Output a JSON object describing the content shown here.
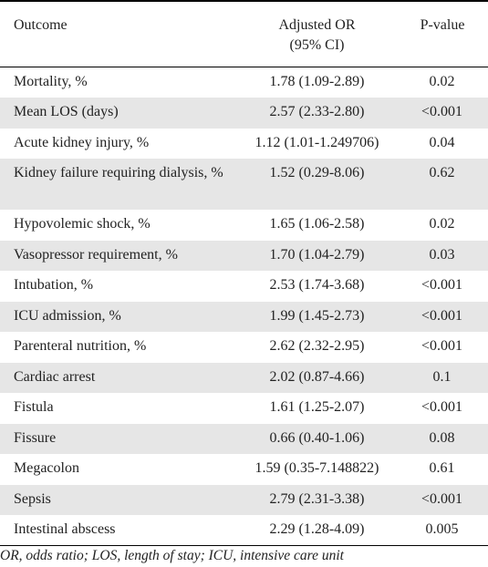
{
  "table": {
    "headers": {
      "outcome": "Outcome",
      "or_line1": "Adjusted  OR",
      "or_line2": "(95%  CI)",
      "pvalue": "P-value"
    },
    "rows": [
      {
        "outcome": "Mortality, %",
        "or": "1.78 (1.09-2.89)",
        "p": "0.02"
      },
      {
        "outcome": "Mean LOS (days)",
        "or": "2.57 (2.33-2.80)",
        "p": "<0.001"
      },
      {
        "outcome": "Acute kidney injury, %",
        "or": "1.12 (1.01-1.249706)",
        "p": "0.04"
      },
      {
        "outcome": "Kidney failure requiring dialysis, %",
        "or": "1.52 (0.29-8.06)",
        "p": "0.62"
      },
      {
        "outcome": "Hypovolemic shock, %",
        "or": "1.65 (1.06-2.58)",
        "p": "0.02"
      },
      {
        "outcome": "Vasopressor requirement, %",
        "or": "1.70 (1.04-2.79)",
        "p": "0.03"
      },
      {
        "outcome": "Intubation, %",
        "or": "2.53 (1.74-3.68)",
        "p": "<0.001"
      },
      {
        "outcome": "ICU admission, %",
        "or": "1.99 (1.45-2.73)",
        "p": "<0.001"
      },
      {
        "outcome": "Parenteral nutrition, %",
        "or": "2.62 (2.32-2.95)",
        "p": "<0.001"
      },
      {
        "outcome": "Cardiac arrest",
        "or": "2.02 (0.87-4.66)",
        "p": "0.1"
      },
      {
        "outcome": "Fistula",
        "or": "1.61 (1.25-2.07)",
        "p": "<0.001"
      },
      {
        "outcome": "Fissure",
        "or": "0.66 (0.40-1.06)",
        "p": "0.08"
      },
      {
        "outcome": "Megacolon",
        "or": "1.59 (0.35-7.148822)",
        "p": "0.61"
      },
      {
        "outcome": "Sepsis",
        "or": "2.79 (2.31-3.38)",
        "p": "<0.001"
      },
      {
        "outcome": "Intestinal abscess",
        "or": "2.29 (1.28-4.09)",
        "p": "0.005"
      }
    ]
  },
  "footnote": "OR, odds ratio; LOS, length of stay; ICU, intensive care unit"
}
